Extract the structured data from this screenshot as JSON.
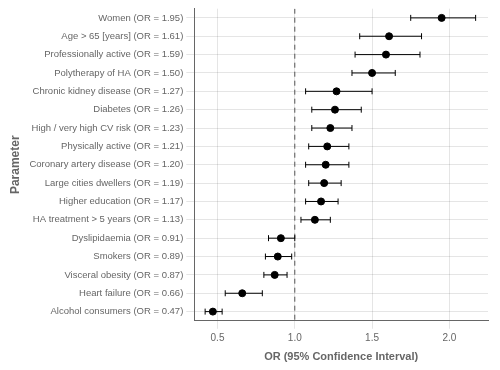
{
  "chart_data": {
    "type": "forest",
    "xlabel": "OR (95% Confidence Interval)",
    "ylabel": "Parameter",
    "categories": [
      "Women (OR = 1.95)",
      "Age > 65 [years] (OR = 1.61)",
      "Professionally active (OR = 1.59)",
      "Polytherapy of HA (OR = 1.50)",
      "Chronic kidney disease (OR = 1.27)",
      "Diabetes (OR = 1.26)",
      "High / very high CV risk (OR = 1.23)",
      "Physically active (OR = 1.21)",
      "Coronary artery disease (OR = 1.20)",
      "Large cities dwellers (OR = 1.19)",
      "Higher education (OR = 1.17)",
      "HA treatment > 5 years (OR = 1.13)",
      "Dyslipidaemia (OR = 0.91)",
      "Smokers (OR = 0.89)",
      "Visceral obesity (OR = 0.87)",
      "Heart failure (OR = 0.66)",
      "Alcohol consumers (OR = 0.47)"
    ],
    "values": [
      1.95,
      1.61,
      1.59,
      1.5,
      1.27,
      1.26,
      1.23,
      1.21,
      1.2,
      1.19,
      1.17,
      1.13,
      0.91,
      0.89,
      0.87,
      0.66,
      0.47
    ],
    "ci_lower": [
      1.75,
      1.42,
      1.39,
      1.37,
      1.07,
      1.11,
      1.11,
      1.09,
      1.07,
      1.09,
      1.07,
      1.04,
      0.83,
      0.81,
      0.8,
      0.55,
      0.42
    ],
    "ci_upper": [
      2.17,
      1.82,
      1.81,
      1.65,
      1.5,
      1.43,
      1.37,
      1.35,
      1.35,
      1.3,
      1.28,
      1.23,
      1.0,
      0.98,
      0.95,
      0.79,
      0.53
    ],
    "ref_line": 1.0,
    "color": "#000000",
    "xlim": [
      0.35,
      2.25
    ],
    "xticks": [
      0.5,
      {
        "value": 1.0,
        "label": "1.0"
      },
      1.5,
      {
        "value": 2.0,
        "label": "2.0"
      }
    ],
    "grid": true
  }
}
